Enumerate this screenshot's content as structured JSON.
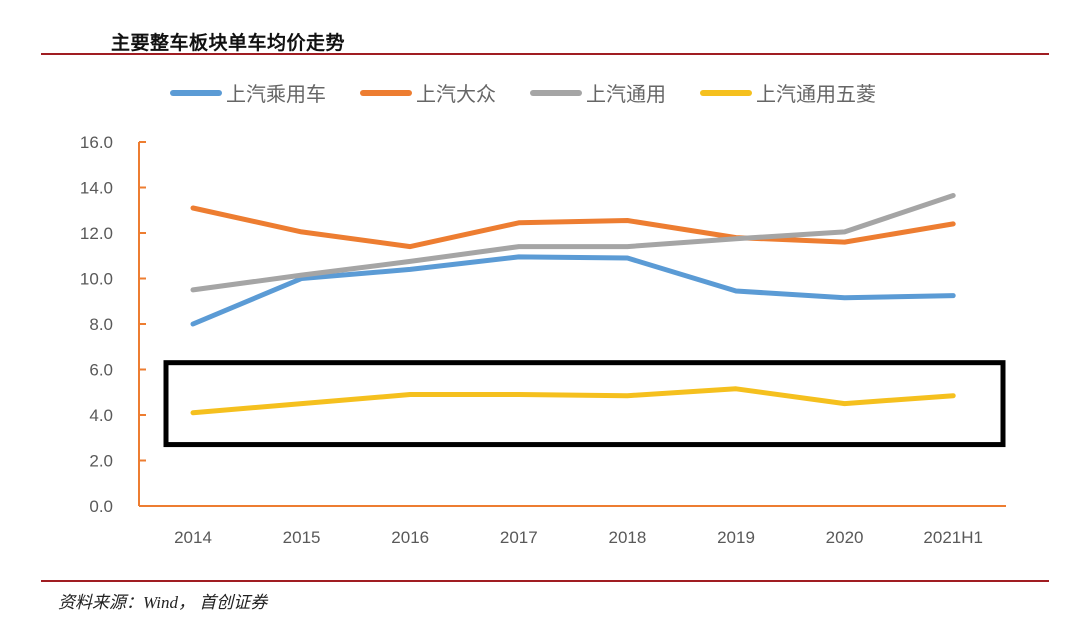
{
  "header": {
    "title": "主要整车板块单车均价走势"
  },
  "footer": {
    "source": "资料来源：Wind， 首创证券"
  },
  "colors": {
    "rule": "#a01d22",
    "axis": "#ed7d31",
    "highlight_box": "#000000"
  },
  "chart_data": {
    "type": "line",
    "title": "主要整车板块单车均价走势",
    "xlabel": "",
    "ylabel": "",
    "categories": [
      "2014",
      "2015",
      "2016",
      "2017",
      "2018",
      "2019",
      "2020",
      "2021H1"
    ],
    "ylim": [
      0,
      16
    ],
    "yticks": [
      0,
      2,
      4,
      6,
      8,
      10,
      12,
      14,
      16
    ],
    "ytick_labels": [
      "0.0",
      "2.0",
      "4.0",
      "6.0",
      "8.0",
      "10.0",
      "12.0",
      "14.0",
      "16.0"
    ],
    "grid": false,
    "legend_position": "top",
    "series": [
      {
        "name": "上汽乘用车",
        "color": "#5b9bd5",
        "values": [
          8.0,
          10.0,
          10.4,
          10.95,
          10.9,
          9.45,
          9.15,
          9.25
        ]
      },
      {
        "name": "上汽大众",
        "color": "#ed7d31",
        "values": [
          13.1,
          12.05,
          11.4,
          12.45,
          12.55,
          11.8,
          11.6,
          12.4
        ]
      },
      {
        "name": "上汽通用",
        "color": "#a5a5a5",
        "values": [
          9.5,
          10.15,
          10.75,
          11.4,
          11.4,
          11.75,
          12.05,
          13.65
        ]
      },
      {
        "name": "上汽通用五菱",
        "color": "#f5c01e",
        "values": [
          4.1,
          4.5,
          4.9,
          4.9,
          4.85,
          5.15,
          4.5,
          4.85
        ]
      }
    ],
    "annotations": [
      {
        "type": "highlight-box",
        "y_range": [
          2.7,
          6.3
        ],
        "target_series": "上汽通用五菱"
      }
    ]
  }
}
